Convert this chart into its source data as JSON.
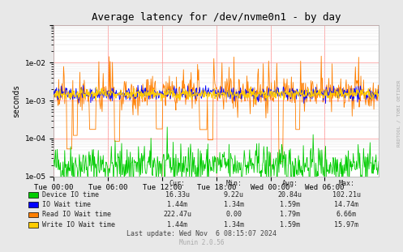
{
  "title": "Average latency for /dev/nvme0n1 - by day",
  "ylabel": "seconds",
  "bg_color": "#e8e8e8",
  "plot_bg_color": "#ffffff",
  "grid_color_major": "#ff9999",
  "grid_color_minor": "#dddddd",
  "watermark": "RRDTOOL / TOBI OETIKER",
  "munin_version": "Munin 2.0.56",
  "last_update": "Last update: Wed Nov  6 08:15:07 2024",
  "x_tick_labels": [
    "Tue 00:00",
    "Tue 06:00",
    "Tue 12:00",
    "Tue 18:00",
    "Wed 00:00",
    "Wed 06:00"
  ],
  "ylim_min": 1e-05,
  "ylim_max": 0.1,
  "legend": [
    {
      "label": "Device IO time",
      "color": "#00cc00"
    },
    {
      "label": "IO Wait time",
      "color": "#0000ff"
    },
    {
      "label": "Read IO Wait time",
      "color": "#ff7f00"
    },
    {
      "label": "Write IO Wait time",
      "color": "#ffcc00"
    }
  ],
  "stats": [
    {
      "cur": "16.33u",
      "min": "9.22u",
      "avg": "20.84u",
      "max": "102.21u"
    },
    {
      "cur": "1.44m",
      "min": "1.34m",
      "avg": "1.59m",
      "max": "14.74m"
    },
    {
      "cur": "222.47u",
      "min": "0.00",
      "avg": "1.79m",
      "max": "6.66m"
    },
    {
      "cur": "1.44m",
      "min": "1.34m",
      "avg": "1.59m",
      "max": "15.97m"
    }
  ],
  "n_points": 600
}
